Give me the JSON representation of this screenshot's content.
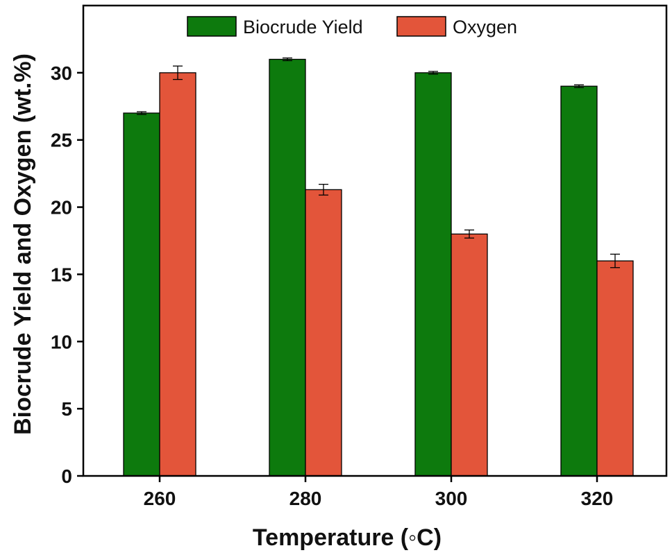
{
  "chart_data": {
    "type": "bar",
    "categories": [
      "260",
      "280",
      "300",
      "320"
    ],
    "series": [
      {
        "name": "Biocrude Yield",
        "color": "#0d7a0d",
        "values": [
          27.0,
          31.0,
          30.0,
          29.0
        ],
        "errors": [
          0.1,
          0.1,
          0.1,
          0.1
        ]
      },
      {
        "name": "Oxygen",
        "color": "#e3553a",
        "values": [
          30.0,
          21.3,
          18.0,
          16.0
        ],
        "errors": [
          0.5,
          0.4,
          0.3,
          0.5
        ]
      }
    ],
    "xlabel": "Temperature (◦C)",
    "ylabel": "Biocrude Yield and Oxygen (wt.%)",
    "ylim": [
      0,
      35
    ],
    "yticks": [
      0,
      5,
      10,
      15,
      20,
      25,
      30
    ],
    "legend_position": "top-center",
    "grid": false
  }
}
